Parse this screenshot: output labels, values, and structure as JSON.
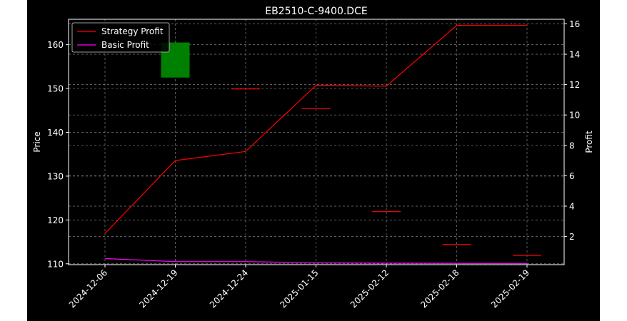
{
  "chart_data": {
    "type": "candlestick+line",
    "title": "EB2510-C-9400.DCE",
    "xlabel": "",
    "ylabel_left": "Price",
    "ylabel_right": "Profit",
    "categories": [
      "2024-12-06",
      "2024-12-19",
      "2024-12-24",
      "2025-01-15",
      "2025-02-12",
      "2025-02-18",
      "2025-02-19"
    ],
    "ylim_left": [
      109.8,
      165.8
    ],
    "ylim_right": [
      0.15,
      16.3
    ],
    "yticks_left": [
      110,
      120,
      130,
      140,
      150,
      160
    ],
    "yticks_right": [
      2,
      4,
      6,
      8,
      10,
      12,
      14,
      16
    ],
    "candles": [
      {
        "date": "2024-12-19",
        "open": 152.5,
        "close": 160.5,
        "color": "#008000"
      },
      {
        "date": "2024-12-24",
        "open": 150.0,
        "close": 150.0,
        "color": "#ff0000"
      },
      {
        "date": "2025-01-15",
        "open": 145.5,
        "close": 145.5,
        "color": "#ff0000"
      },
      {
        "date": "2025-02-12",
        "open": 122.0,
        "close": 122.0,
        "color": "#ff0000"
      },
      {
        "date": "2025-02-18",
        "open": 114.5,
        "close": 114.5,
        "color": "#ff0000"
      },
      {
        "date": "2025-02-19",
        "open": 112.0,
        "close": 112.0,
        "color": "#ff0000"
      }
    ],
    "series": [
      {
        "name": "Strategy Profit",
        "axis": "right",
        "color": "#ff0000",
        "values": [
          2.2,
          7.0,
          7.6,
          11.95,
          11.9,
          15.9,
          15.9
        ]
      },
      {
        "name": "Basic Profit",
        "axis": "right",
        "color": "#ff00ff",
        "values": [
          0.55,
          0.35,
          0.35,
          0.27,
          0.25,
          0.23,
          0.22
        ]
      }
    ],
    "grid": true,
    "legend": "top-left",
    "colors": {
      "background": "#000000",
      "grid": "#808080",
      "axes": "#ffffff"
    }
  }
}
